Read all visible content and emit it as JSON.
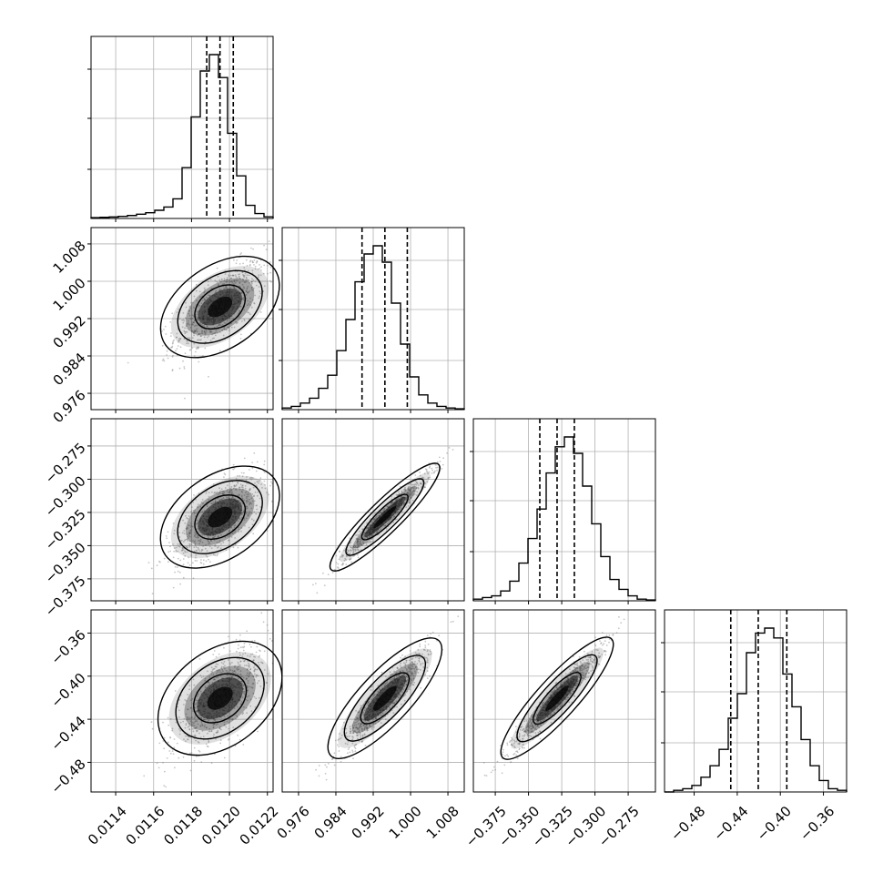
{
  "chart_data": {
    "type": "corner",
    "grid": true,
    "params": [
      {
        "range": [
          0.01127,
          0.01223
        ],
        "ticks": [
          0.0114,
          0.0116,
          0.0118,
          0.012,
          0.0122
        ],
        "tick_labels": [
          "0.0114",
          "0.0116",
          "0.0118",
          "0.0120",
          "0.0122"
        ],
        "quantiles": [
          0.01188,
          0.01195,
          0.01202
        ],
        "hist": [
          0.005,
          0.007,
          0.009,
          0.013,
          0.018,
          0.026,
          0.035,
          0.05,
          0.07,
          0.12,
          0.31,
          0.62,
          0.9,
          1.0,
          0.86,
          0.52,
          0.26,
          0.08,
          0.03,
          0.01
        ]
      },
      {
        "range": [
          0.9725,
          1.0115
        ],
        "ticks": [
          0.976,
          0.984,
          0.992,
          1.0,
          1.008
        ],
        "tick_labels": [
          "0.976",
          "0.984",
          "0.992",
          "1.000",
          "1.008"
        ],
        "quantiles": [
          0.9896,
          0.9945,
          0.9993
        ],
        "hist": [
          0.01,
          0.02,
          0.04,
          0.07,
          0.13,
          0.21,
          0.36,
          0.55,
          0.78,
          0.95,
          1.0,
          0.9,
          0.65,
          0.4,
          0.2,
          0.09,
          0.04,
          0.02,
          0.01,
          0.005
        ]
      },
      {
        "range": [
          -0.3915,
          -0.2545
        ],
        "ticks": [
          -0.375,
          -0.35,
          -0.325,
          -0.3,
          -0.275
        ],
        "tick_labels": [
          "−0.375",
          "−0.350",
          "−0.325",
          "−0.300",
          "−0.275"
        ],
        "quantiles": [
          -0.3415,
          -0.3285,
          -0.3155
        ],
        "hist": [
          0.01,
          0.02,
          0.03,
          0.06,
          0.12,
          0.23,
          0.38,
          0.56,
          0.78,
          0.94,
          1.0,
          0.9,
          0.7,
          0.47,
          0.27,
          0.13,
          0.07,
          0.03,
          0.01,
          0.005
        ]
      },
      {
        "range": [
          -0.5075,
          -0.3385
        ],
        "ticks": [
          -0.48,
          -0.44,
          -0.4,
          -0.36
        ],
        "tick_labels": [
          "−0.48",
          "−0.44",
          "−0.40",
          "−0.36"
        ],
        "quantiles": [
          -0.446,
          -0.4205,
          -0.394
        ],
        "hist": [
          0.0,
          0.01,
          0.02,
          0.04,
          0.09,
          0.16,
          0.26,
          0.45,
          0.6,
          0.85,
          0.97,
          1.0,
          0.94,
          0.72,
          0.52,
          0.32,
          0.16,
          0.07,
          0.02,
          0.01
        ]
      }
    ],
    "correlations": [
      [
        1.0,
        0.7,
        0.7,
        0.7
      ],
      [
        0.7,
        1.0,
        0.97,
        0.93
      ],
      [
        0.7,
        0.97,
        1.0,
        0.96
      ],
      [
        0.7,
        0.93,
        0.96,
        1.0
      ]
    ],
    "stds": [
      0.00012,
      0.0048,
      0.017,
      0.024
    ],
    "line_color": "#000000",
    "sample_color": "#808080",
    "grid_color": "#b0b0b0"
  }
}
